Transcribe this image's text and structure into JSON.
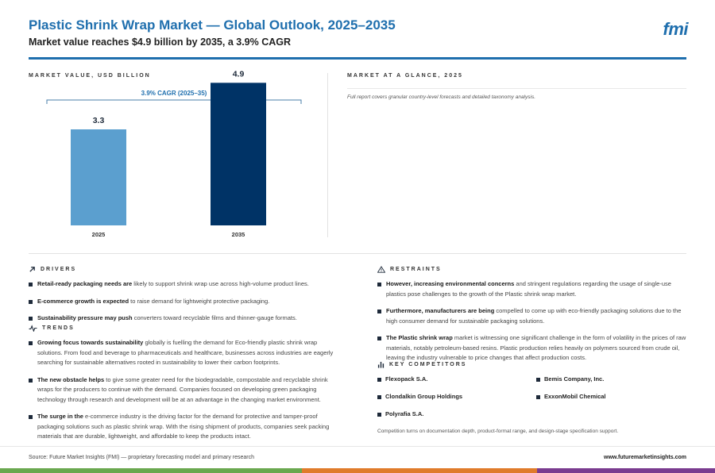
{
  "header": {
    "title": "Plastic Shrink Wrap Market — Global Outlook, 2025–2035",
    "subtitle": "Market value reaches $4.9 billion by 2035, a 3.9% CAGR",
    "logo_text": "fmi"
  },
  "left_panel": {
    "kicker": "MARKET VALUE, USD BILLION"
  },
  "chart_data": {
    "type": "bar",
    "categories": [
      "2025",
      "2035"
    ],
    "values": [
      3.3,
      4.9
    ],
    "value_labels": [
      "3.3",
      "4.9"
    ],
    "annotation": "3.9% CAGR (2025–35)",
    "ylim": [
      0,
      6.0
    ],
    "bar_colors": [
      "#5b9fcf",
      "#003366"
    ],
    "bracket_color": "#4a7faa",
    "grid": false
  },
  "right_panel": {
    "kicker": "MARKET AT A GLANCE, 2025",
    "note": "Full report covers granular country-level forecasts and detailed taxonomy analysis."
  },
  "drivers": {
    "heading": "DRIVERS",
    "icon": "arrow-up-right-icon",
    "items": [
      {
        "bold": "Retail-ready packaging needs are",
        "text": " likely to support shrink wrap use across high-volume product lines."
      },
      {
        "bold": "E-commerce growth is expected",
        "text": " to raise demand for lightweight protective packaging."
      },
      {
        "bold": "Sustainability pressure may push",
        "text": " converters toward recyclable films and thinner-gauge formats."
      }
    ]
  },
  "trends": {
    "heading": "TRENDS",
    "icon": "pulse-line-icon",
    "items": [
      {
        "bold": "Growing focus towards sustainability",
        "text": " globally is fuelling the demand for Eco-friendly plastic shrink wrap solutions. From food and beverage to pharmaceuticals and healthcare, businesses across industries are eagerly searching for sustainable alternatives rooted in sustainability to lower their carbon footprints."
      },
      {
        "bold": "The new obstacle helps",
        "text": " to give some greater need for the biodegradable, compostable and recyclable shrink wraps for the producers to continue with the demand. Companies focused on developing green packaging technology through research and development will be at an advantage in the changing market environment."
      },
      {
        "bold": "The surge in the",
        "text": " e-commerce industry is the driving factor for the demand for protective and tamper-proof packaging solutions such as plastic shrink wrap. With the rising shipment of products, companies seek packing materials that are durable, lightweight, and affordable to keep the products intact."
      }
    ]
  },
  "restraints": {
    "heading": "RESTRAINTS",
    "icon": "warning-triangle-icon",
    "items": [
      {
        "bold": "However, increasing environmental concerns",
        "text": " and stringent regulations regarding the usage of single-use plastics pose challenges to the growth of the Plastic shrink wrap market."
      },
      {
        "bold": "Furthermore, manufacturers are being",
        "text": " compelled to come up with eco-friendly packaging solutions due to the high consumer demand for sustainable packaging solutions."
      },
      {
        "bold": "The Plastic shrink wrap",
        "text": " market is witnessing one significant challenge in the form of volatility in the prices of raw materials, notably petroleum-based resins. Plastic production relies heavily on polymers sourced from crude oil, leaving the industry vulnerable to price changes that affect production costs."
      }
    ]
  },
  "competitors": {
    "heading": "KEY COMPETITORS",
    "icon": "bar-chart-icon",
    "items": [
      "Flexopack S.A.",
      "Bemis Company, Inc.",
      "Clondalkin Group Holdings",
      "ExxonMobil Chemical",
      "Polyrafia S.A."
    ],
    "note": "Competition turns on documentation depth, product-format range, and design-stage specification support."
  },
  "footer": {
    "source": "Source: Future Market Insights (FMI) — proprietary forecasting model and primary research",
    "site": "www.futuremarketinsights.com"
  },
  "colors": {
    "accent": "#1f6fae",
    "stripe": [
      "#6aa84f",
      "#e07b2a",
      "#7a3b8f"
    ]
  }
}
